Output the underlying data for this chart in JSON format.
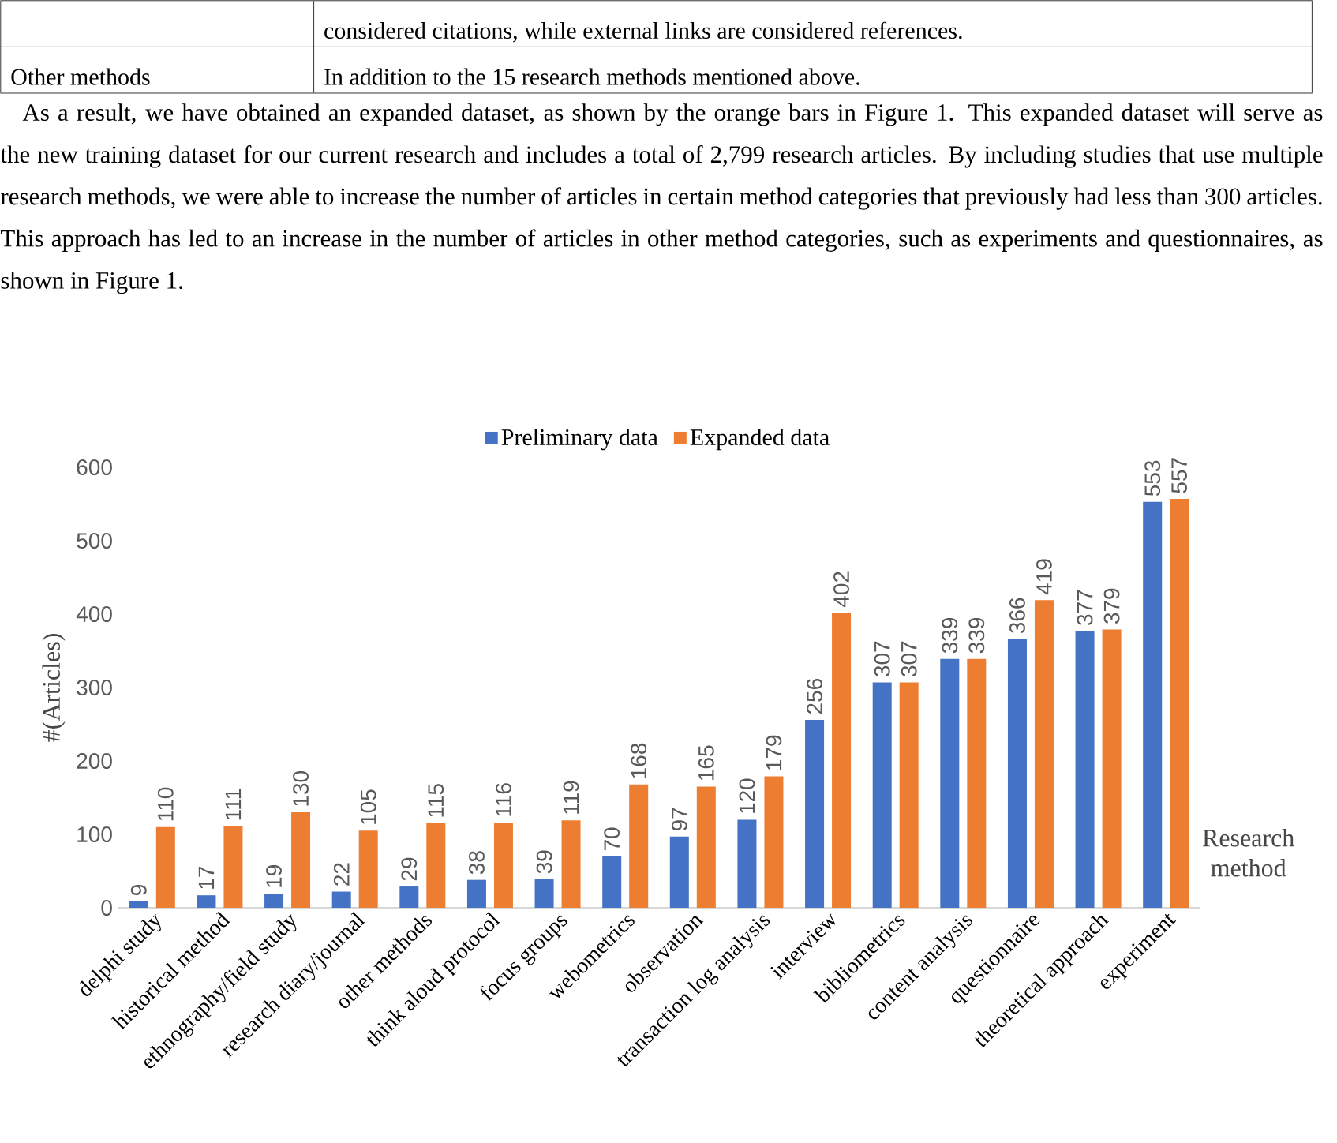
{
  "chart_data": {
    "type": "bar",
    "annotations": [
      "considered citations, while external links are considered references.",
      "Other methods",
      "In addition to the 15 research methods mentioned above.",
      "As a result, we have obtained an expanded dataset, as shown by the orange bars in Figure 1. This expanded dataset will serve as the new training dataset for our current research and includes a total of 2,799 research articles. By including studies that use multiple research methods, we were able to increase the number of articles in certain method categories that previously had less than 300 articles. This approach has led to an increase in the number of articles in other method categories, such as experiments and questionnaires, as shown in Figure 1."
    ],
    "xlabel": "Research method",
    "ylabel": "#(Articles)",
    "categories": [
      "delphi study",
      "historical method",
      "ethnography/field study",
      "research diary/journal",
      "other methods",
      "think aloud protocol",
      "focus groups",
      "webometrics",
      "observation",
      "transaction log analysis",
      "interview",
      "bibliometrics",
      "content analysis",
      "questionnaire",
      "theoretical approach",
      "experiment"
    ],
    "series": [
      {
        "name": "Preliminary data",
        "color": "#4472c4",
        "values": [
          9,
          17,
          19,
          22,
          29,
          38,
          39,
          70,
          97,
          120,
          256,
          307,
          339,
          366,
          377,
          553
        ]
      },
      {
        "name": "Expanded data",
        "color": "#ed7d31",
        "values": [
          110,
          111,
          130,
          105,
          115,
          116,
          119,
          168,
          165,
          179,
          402,
          307,
          339,
          419,
          379,
          557
        ]
      }
    ],
    "ylim": [
      0,
      600
    ],
    "yticks": [
      0,
      100,
      200,
      300,
      400,
      500,
      600
    ],
    "data_labels": true,
    "legend": "top",
    "grid": false
  }
}
